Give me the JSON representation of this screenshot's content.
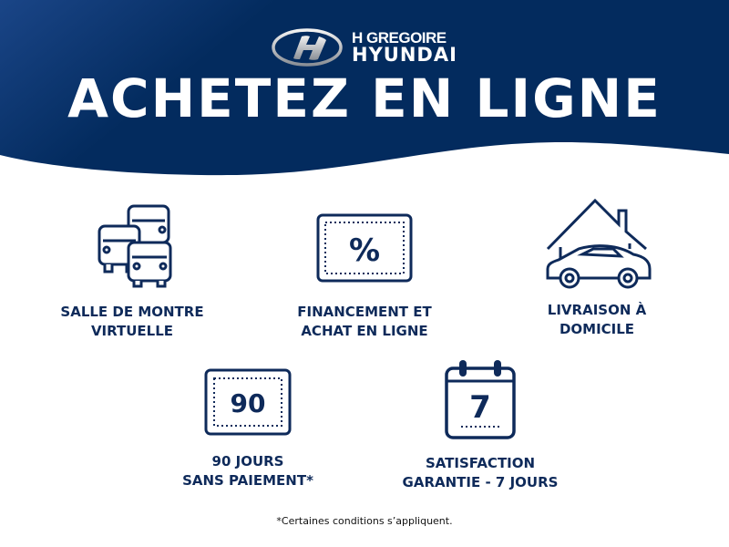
{
  "brand": {
    "dealer": "GREGOIRE",
    "make": "HYUNDAI",
    "monogram": "H"
  },
  "headline": "ACHETEZ EN LIGNE",
  "colors": {
    "navy": "#032b5e",
    "navy_light": "#133e7c",
    "icon": "#0e2a5a"
  },
  "features": [
    {
      "icon": "cars-showroom-icon",
      "line1": "SALLE DE MONTRE",
      "line2": "VIRTUELLE"
    },
    {
      "icon": "percent-ticket-icon",
      "line1": "FINANCEMENT ET",
      "line2": "ACHAT EN LIGNE",
      "symbol": "%"
    },
    {
      "icon": "house-car-icon",
      "line1": "LIVRAISON À",
      "line2": "DOMICILE"
    },
    {
      "icon": "ticket-90-icon",
      "line1": "90 JOURS",
      "line2": "SANS PAIEMENT*",
      "symbol": "90"
    },
    {
      "icon": "calendar-7-icon",
      "line1": "SATISFACTION",
      "line2": "GARANTIE - 7 JOURS",
      "symbol": "7"
    }
  ],
  "footnote": "*Certaines conditions s’appliquent."
}
